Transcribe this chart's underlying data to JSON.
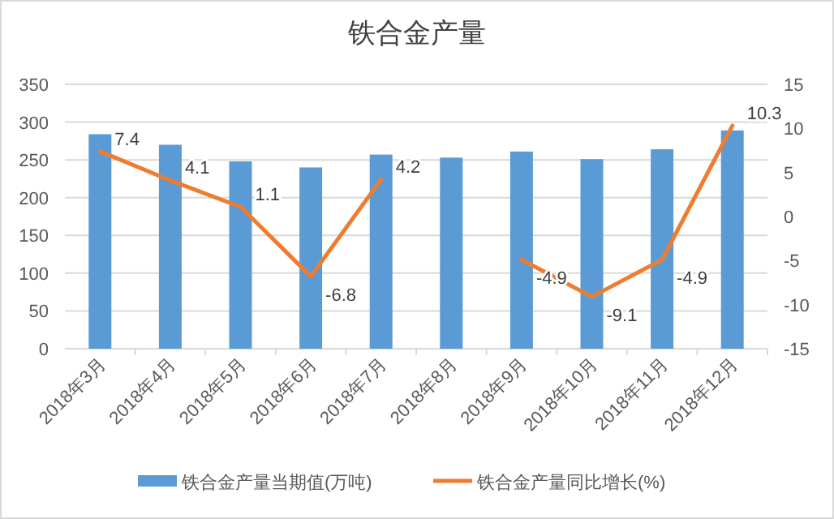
{
  "chart_data": {
    "type": "bar",
    "title": "铁合金产量",
    "categories": [
      "2018年3月",
      "2018年4月",
      "2018年5月",
      "2018年6月",
      "2018年7月",
      "2018年8月",
      "2018年9月",
      "2018年10月",
      "2018年11月",
      "2018年12月"
    ],
    "series": [
      {
        "name": "铁合金产量当期值(万吨)",
        "color": "#5b9bd5",
        "values": [
          284,
          270,
          248,
          240,
          257,
          253,
          261,
          251,
          264,
          289
        ]
      },
      {
        "name": "铁合金产量同比增长(%)",
        "type": "line",
        "axis": "y2",
        "color": "#ed7d31",
        "values": [
          7.4,
          4.1,
          1.1,
          -6.8,
          4.2,
          null,
          -4.9,
          -9.1,
          -4.9,
          10.3
        ],
        "value_labels": [
          "7.4",
          "4.1",
          "1.1",
          "-6.8",
          "4.2",
          null,
          "-4.9",
          "-9.1",
          "-4.9",
          "10.3"
        ]
      }
    ],
    "ylim": [
      0,
      350
    ],
    "yticks": [
      0,
      50,
      100,
      150,
      200,
      250,
      300,
      350
    ],
    "y2lim": [
      -15,
      15
    ],
    "y2ticks": [
      -15,
      -10,
      -5,
      0,
      5,
      10,
      15
    ],
    "grid": "y",
    "legend": "bottom",
    "marker": "none",
    "line_style": "solid"
  }
}
